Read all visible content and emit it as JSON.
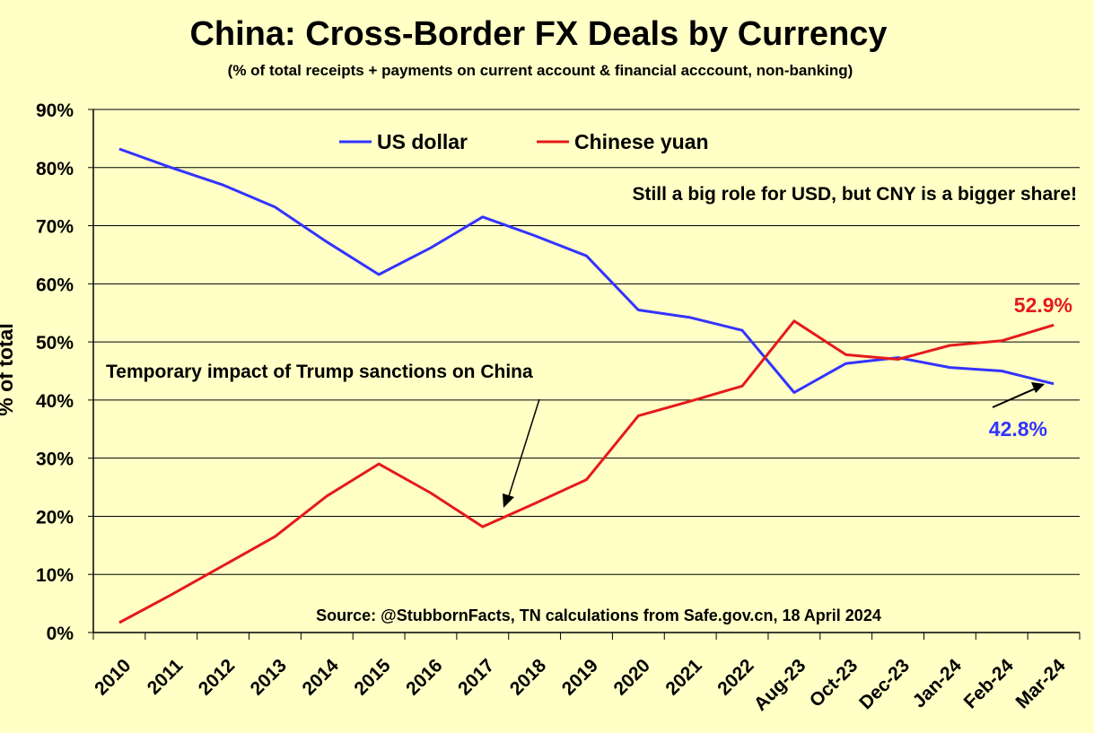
{
  "chart_data": {
    "type": "line",
    "title": "China: Cross-Border FX Deals by Currency",
    "subtitle": "(% of total receipts + payments on current account & financial acccount, non-banking)",
    "ylabel": "% of total",
    "xlabel": "",
    "ylim": [
      0,
      90
    ],
    "y_ticks": [
      "0%",
      "10%",
      "20%",
      "30%",
      "40%",
      "50%",
      "60%",
      "70%",
      "80%",
      "90%"
    ],
    "y_tick_values": [
      0,
      10,
      20,
      30,
      40,
      50,
      60,
      70,
      80,
      90
    ],
    "grid": true,
    "categories": [
      "2010",
      "2011",
      "2012",
      "2013",
      "2014",
      "2015",
      "2016",
      "2017",
      "2018",
      "2019",
      "2020",
      "2021",
      "2022",
      "Aug-23",
      "Oct-23",
      "Dec-23",
      "Jan-24",
      "Feb-24",
      "Mar-24"
    ],
    "series": [
      {
        "name": "US dollar",
        "color": "#3333FF",
        "values": [
          83.2,
          80.0,
          77.0,
          73.2,
          67.2,
          61.6,
          66.2,
          71.5,
          68.3,
          64.8,
          55.5,
          54.2,
          52.0,
          41.3,
          46.3,
          47.3,
          45.6,
          45.0,
          42.8
        ]
      },
      {
        "name": "Chinese yuan",
        "color": "#E51A1A",
        "values": [
          1.7,
          6.5,
          11.5,
          16.5,
          23.5,
          29.0,
          24.0,
          18.2,
          22.2,
          26.3,
          37.3,
          39.8,
          42.4,
          53.6,
          47.8,
          47.0,
          49.4,
          50.2,
          52.9
        ]
      }
    ],
    "legend": [
      "US dollar",
      "Chinese yuan"
    ],
    "legend_position": "top-center",
    "annotations": {
      "usd_cny": "Still a big role for USD, but CNY is a bigger share!",
      "trump": "Temporary impact of Trump sanctions on China",
      "source": "Source: @StubbornFacts, TN calculations from Safe.gov.cn, 18 April 2024",
      "cny_end_label": "52.9%",
      "usd_end_label": "42.8%"
    }
  }
}
